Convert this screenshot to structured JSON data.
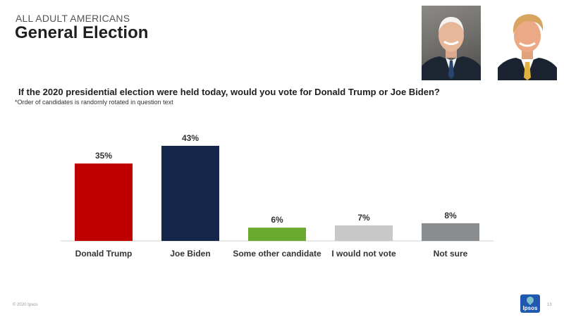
{
  "header": {
    "eyebrow": "ALL ADULT AMERICANS",
    "title": "General Election"
  },
  "question": "If the 2020 presidential election were held today, would you vote for Donald Trump or Joe Biden?",
  "note": "*Order of candidates is randomly rotated in question text",
  "footer": {
    "copyright": "© 2020 Ipsos",
    "logo_text": "Ipsos",
    "page_number": "13"
  },
  "colors": {
    "trump": "#c00000",
    "biden": "#14264a",
    "other": "#6aaa2f",
    "no_vote": "#c8c8c8",
    "not_sure": "#8a8e91"
  },
  "chart_data": {
    "type": "bar",
    "title": "If the 2020 presidential election were held today, would you vote for Donald Trump or Joe Biden?",
    "categories": [
      "Donald Trump",
      "Joe Biden",
      "Some other candidate",
      "I would not vote",
      "Not sure"
    ],
    "values": [
      35,
      43,
      6,
      7,
      8
    ],
    "value_labels": [
      "35%",
      "43%",
      "6%",
      "7%",
      "8%"
    ],
    "colors": [
      "#c00000",
      "#14264a",
      "#6aaa2f",
      "#c8c8c8",
      "#8a8e91"
    ],
    "xlabel": "",
    "ylabel": "",
    "ylim": [
      0,
      43
    ],
    "grid": false,
    "legend": "none"
  }
}
